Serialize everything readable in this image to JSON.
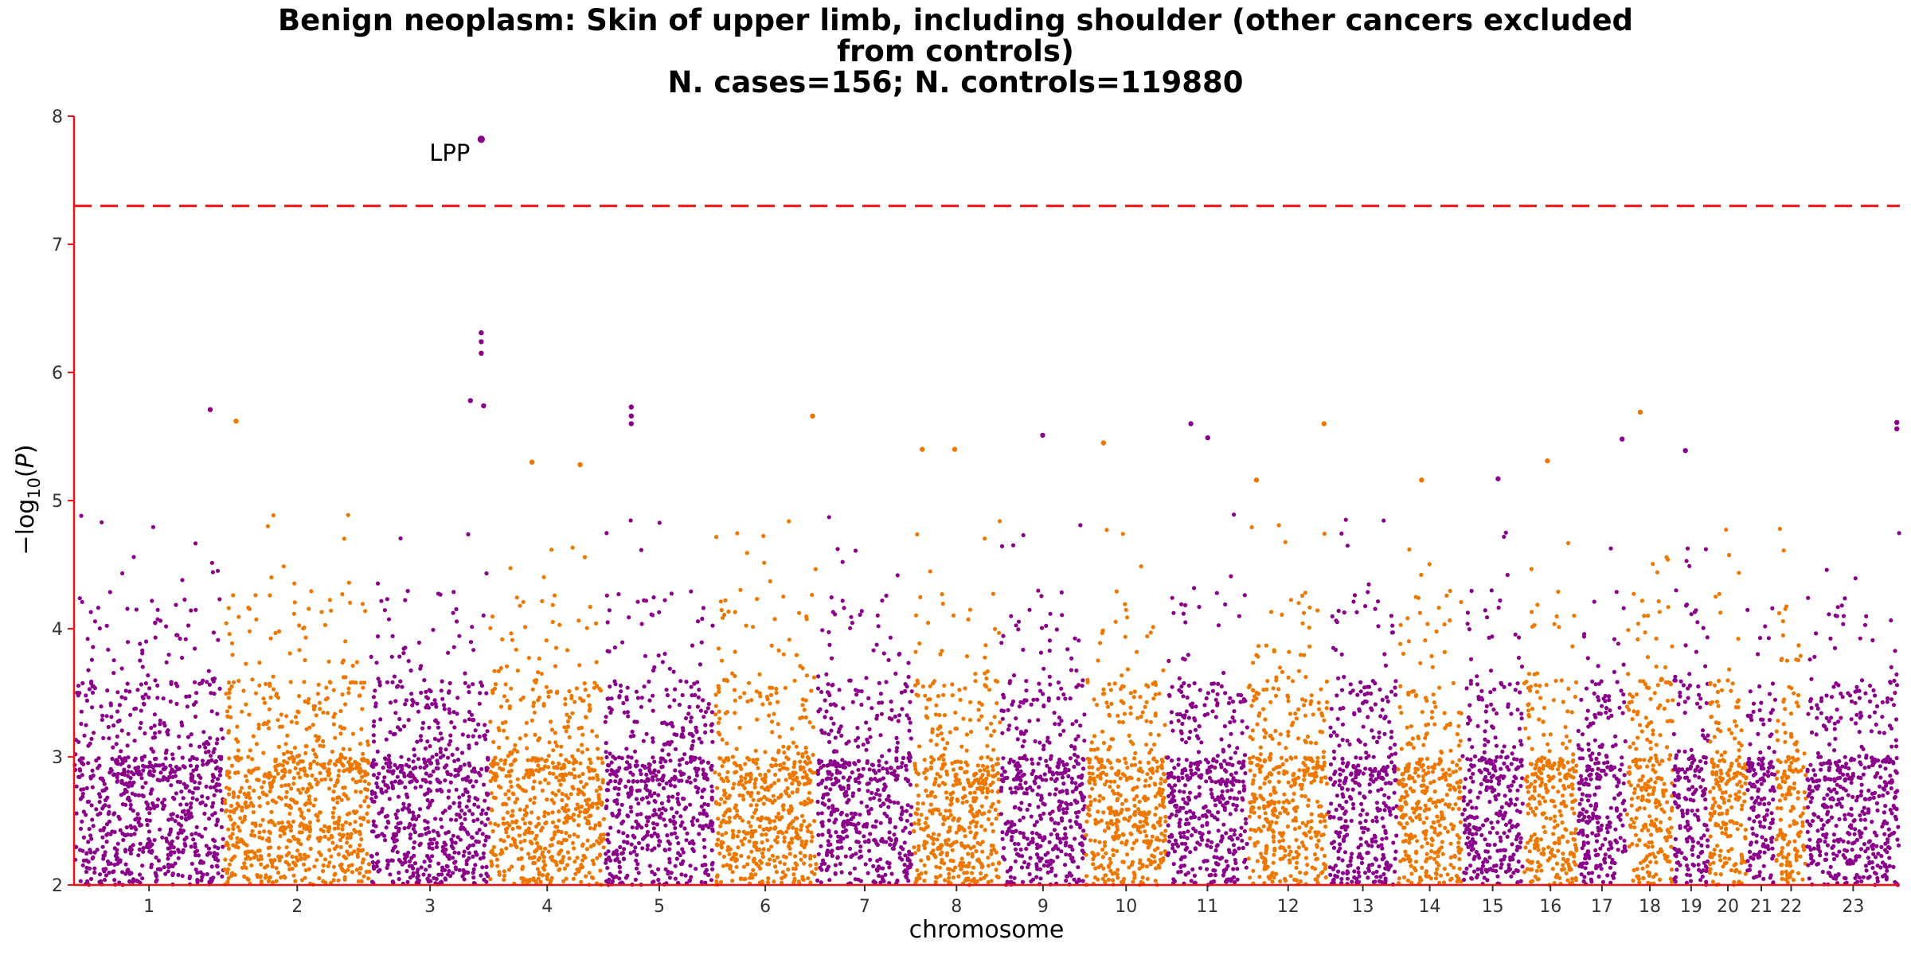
{
  "chart_data": {
    "type": "scatter",
    "subtype": "manhattan",
    "title_lines": [
      "Benign neoplasm: Skin of upper limb, including shoulder (other cancers excluded",
      "from controls)",
      "N. cases=156; N. controls=119880"
    ],
    "xlabel": "chromosome",
    "ylabel": "−log10(P)",
    "ylim": [
      2,
      8
    ],
    "yticks": [
      2,
      3,
      4,
      5,
      6,
      7,
      8
    ],
    "significance_threshold": 7.3,
    "threshold_color": "#ee1111",
    "colors": {
      "odd": "#8b008b",
      "even": "#ee7700",
      "axis": "#ee1111"
    },
    "chromosomes": [
      {
        "label": "1",
        "start": 0,
        "length": 249
      },
      {
        "label": "2",
        "start": 249,
        "length": 243
      },
      {
        "label": "3",
        "start": 492,
        "length": 198
      },
      {
        "label": "4",
        "start": 690,
        "length": 191
      },
      {
        "label": "5",
        "start": 881,
        "length": 181
      },
      {
        "label": "6",
        "start": 1062,
        "length": 171
      },
      {
        "label": "7",
        "start": 1233,
        "length": 159
      },
      {
        "label": "8",
        "start": 1392,
        "length": 146
      },
      {
        "label": "9",
        "start": 1538,
        "length": 141
      },
      {
        "label": "10",
        "start": 1679,
        "length": 135
      },
      {
        "label": "11",
        "start": 1814,
        "length": 135
      },
      {
        "label": "12",
        "start": 1949,
        "length": 133
      },
      {
        "label": "13",
        "start": 2082,
        "length": 115
      },
      {
        "label": "14",
        "start": 2197,
        "length": 107
      },
      {
        "label": "15",
        "start": 2304,
        "length": 102
      },
      {
        "label": "16",
        "start": 2406,
        "length": 90
      },
      {
        "label": "17",
        "start": 2496,
        "length": 81
      },
      {
        "label": "18",
        "start": 2577,
        "length": 78
      },
      {
        "label": "19",
        "start": 2655,
        "length": 59
      },
      {
        "label": "20",
        "start": 2714,
        "length": 63
      },
      {
        "label": "21",
        "start": 2777,
        "length": 48
      },
      {
        "label": "22",
        "start": 2825,
        "length": 51
      },
      {
        "label": "23",
        "start": 2876,
        "length": 155
      }
    ],
    "x_total": 3031,
    "top_hits": [
      {
        "chrom": "3",
        "pos": 184,
        "p": 7.82,
        "label": "LPP"
      },
      {
        "chrom": "3",
        "pos": 184,
        "p": 6.31
      },
      {
        "chrom": "3",
        "pos": 184,
        "p": 6.24
      },
      {
        "chrom": "3",
        "pos": 184,
        "p": 6.15
      },
      {
        "chrom": "3",
        "pos": 166,
        "p": 5.78
      },
      {
        "chrom": "3",
        "pos": 188,
        "p": 5.74
      },
      {
        "chrom": "1",
        "pos": 226,
        "p": 5.71
      },
      {
        "chrom": "5",
        "pos": 44,
        "p": 5.73
      },
      {
        "chrom": "5",
        "pos": 44,
        "p": 5.66
      },
      {
        "chrom": "5",
        "pos": 44,
        "p": 5.6
      },
      {
        "chrom": "2",
        "pos": 20,
        "p": 5.62
      },
      {
        "chrom": "18",
        "pos": 23,
        "p": 5.69
      },
      {
        "chrom": "6",
        "pos": 164,
        "p": 5.66
      },
      {
        "chrom": "12",
        "pos": 126,
        "p": 5.6
      },
      {
        "chrom": "11",
        "pos": 40,
        "p": 5.6
      },
      {
        "chrom": "23",
        "pos": 150,
        "p": 5.61
      },
      {
        "chrom": "23",
        "pos": 150,
        "p": 5.56
      },
      {
        "chrom": "9",
        "pos": 70,
        "p": 5.51
      },
      {
        "chrom": "11",
        "pos": 68,
        "p": 5.49
      },
      {
        "chrom": "17",
        "pos": 74,
        "p": 5.48
      },
      {
        "chrom": "10",
        "pos": 30,
        "p": 5.45
      },
      {
        "chrom": "8",
        "pos": 16,
        "p": 5.4
      },
      {
        "chrom": "8",
        "pos": 70,
        "p": 5.4
      },
      {
        "chrom": "19",
        "pos": 20,
        "p": 5.39
      },
      {
        "chrom": "4",
        "pos": 70,
        "p": 5.3
      },
      {
        "chrom": "4",
        "pos": 150,
        "p": 5.28
      },
      {
        "chrom": "16",
        "pos": 40,
        "p": 5.31
      },
      {
        "chrom": "15",
        "pos": 60,
        "p": 5.17
      },
      {
        "chrom": "14",
        "pos": 40,
        "p": 5.16
      },
      {
        "chrom": "12",
        "pos": 14,
        "p": 5.16
      }
    ]
  }
}
